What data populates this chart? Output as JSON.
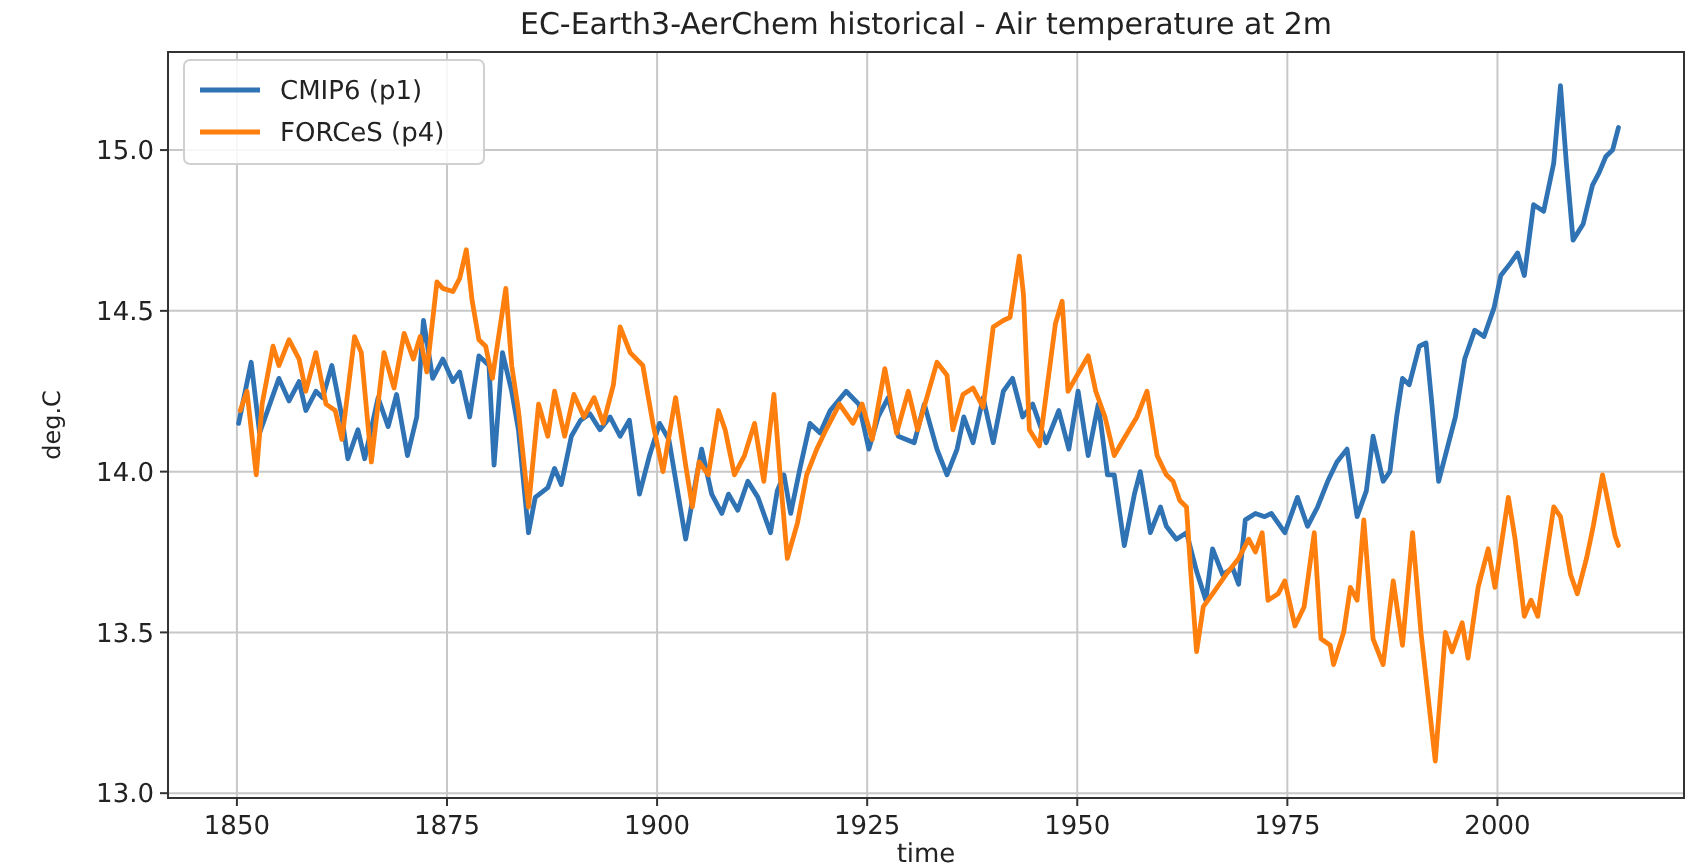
{
  "chart_data": {
    "type": "line",
    "title": "EC-Earth3-AerChem historical - Air temperature at 2m",
    "xlabel": "time",
    "ylabel": "deg.C",
    "xlim": [
      1841.8,
      2022.2
    ],
    "xticks": [
      1850,
      1875,
      1900,
      1925,
      1950,
      1975,
      2000
    ],
    "ylim": [
      12.985,
      15.305
    ],
    "yticks": [
      {
        "value": 13,
        "label": "13.0"
      },
      {
        "value": 13.5,
        "label": "13.5"
      },
      {
        "value": 14,
        "label": "14.0"
      },
      {
        "value": 14.5,
        "label": "14.5"
      },
      {
        "value": 15,
        "label": "15.0"
      }
    ],
    "grid": true,
    "legend": "top left",
    "series": [
      {
        "name": "CMIP6 (p1)",
        "color": "#2f73b5",
        "x": [
          1850.2,
          1851.7,
          1852.7,
          1855,
          1856.2,
          1857.4,
          1858.2,
          1859.4,
          1860.2,
          1861.3,
          1862.5,
          1863.2,
          1864.4,
          1865.2,
          1866.8,
          1868,
          1869,
          1870.3,
          1871.4,
          1872.2,
          1873.3,
          1874.5,
          1875.7,
          1876.5,
          1877.7,
          1878.8,
          1880,
          1880.6,
          1881.6,
          1882.7,
          1883.5,
          1884.7,
          1885.5,
          1887,
          1887.8,
          1888.6,
          1889.8,
          1890.9,
          1892,
          1893.2,
          1894.4,
          1895.6,
          1896.7,
          1897.9,
          1899.1,
          1900.3,
          1901.4,
          1903.4,
          1904.6,
          1905.3,
          1906.5,
          1907.7,
          1908.5,
          1909.6,
          1910.8,
          1912,
          1913.5,
          1914.3,
          1915.1,
          1915.9,
          1917,
          1918.2,
          1919.4,
          1920.6,
          1922.5,
          1924,
          1925.2,
          1926.3,
          1927.5,
          1928.7,
          1930.6,
          1931.8,
          1933.3,
          1934.5,
          1935.7,
          1936.5,
          1937.6,
          1938.8,
          1940,
          1941.2,
          1942.3,
          1943.5,
          1944.7,
          1946.3,
          1947.8,
          1949,
          1950.1,
          1951.3,
          1952.5,
          1953.6,
          1954.4,
          1955.6,
          1956.8,
          1957.5,
          1958.7,
          1959.9,
          1960.6,
          1961.8,
          1963,
          1964.2,
          1965.3,
          1966.1,
          1967.3,
          1968.5,
          1969.2,
          1970,
          1971.2,
          1972.3,
          1973.1,
          1974.7,
          1976.2,
          1977.4,
          1978.6,
          1979.8,
          1980.9,
          1982.1,
          1983.3,
          1984.4,
          1985.2,
          1986.4,
          1987.2,
          1988,
          1988.7,
          1989.5,
          1990.7,
          1991.5,
          1992.2,
          1993,
          1994.2,
          1995,
          1996.1,
          1997.3,
          1998.4,
          1999.6,
          2000.4,
          2001.6,
          2002.4,
          2003.2,
          2004.3,
          2005.5,
          2006.7,
          2007.5,
          2008.2,
          2009,
          2010.2,
          2011.3,
          2012.1,
          2012.9,
          2013.7,
          2014.4
        ],
        "values": [
          14.15,
          14.34,
          14.12,
          14.29,
          14.22,
          14.28,
          14.19,
          14.25,
          14.23,
          14.33,
          14.17,
          14.04,
          14.13,
          14.04,
          14.23,
          14.14,
          14.24,
          14.05,
          14.17,
          14.47,
          14.29,
          14.35,
          14.28,
          14.31,
          14.17,
          14.36,
          14.33,
          14.02,
          14.37,
          14.25,
          14.13,
          13.81,
          13.92,
          13.95,
          14.01,
          13.96,
          14.11,
          14.16,
          14.18,
          14.13,
          14.17,
          14.11,
          14.16,
          13.93,
          14.05,
          14.15,
          14.1,
          13.79,
          13.97,
          14.07,
          13.93,
          13.87,
          13.93,
          13.88,
          13.97,
          13.92,
          13.81,
          13.94,
          13.99,
          13.87,
          14.01,
          14.15,
          14.12,
          14.19,
          14.25,
          14.21,
          14.07,
          14.17,
          14.23,
          14.11,
          14.09,
          14.21,
          14.07,
          13.99,
          14.07,
          14.17,
          14.09,
          14.23,
          14.09,
          14.25,
          14.29,
          14.17,
          14.21,
          14.09,
          14.19,
          14.07,
          14.25,
          14.05,
          14.21,
          13.99,
          13.99,
          13.77,
          13.93,
          14.0,
          13.81,
          13.89,
          13.83,
          13.79,
          13.81,
          13.69,
          13.6,
          13.76,
          13.68,
          13.7,
          13.65,
          13.85,
          13.87,
          13.86,
          13.87,
          13.81,
          13.92,
          13.83,
          13.89,
          13.97,
          14.03,
          14.07,
          13.86,
          13.94,
          14.11,
          13.97,
          14.0,
          14.17,
          14.29,
          14.27,
          14.39,
          14.4,
          14.21,
          13.97,
          14.09,
          14.17,
          14.35,
          14.44,
          14.42,
          14.51,
          14.61,
          14.65,
          14.68,
          14.61,
          14.83,
          14.81,
          14.96,
          15.2,
          14.96,
          14.72,
          14.77,
          14.89,
          14.93,
          14.98,
          15.0,
          15.07
        ]
      },
      {
        "name": "FORCeS (p4)",
        "color": "#ff7f0e",
        "x": [
          1850.4,
          1851.2,
          1852.3,
          1853,
          1854.3,
          1855,
          1856.2,
          1857.4,
          1858.2,
          1859.4,
          1860.6,
          1861.7,
          1862.5,
          1864,
          1864.8,
          1866,
          1867.5,
          1868.7,
          1869.9,
          1871,
          1871.8,
          1872.6,
          1873.8,
          1874.5,
          1875.7,
          1876.5,
          1877.3,
          1878,
          1878.8,
          1879.6,
          1880.4,
          1882,
          1882.7,
          1883.5,
          1884.7,
          1885.9,
          1887,
          1887.8,
          1889,
          1890.1,
          1891.3,
          1892.5,
          1893.6,
          1894.8,
          1895.6,
          1896.8,
          1898.3,
          1899.5,
          1900.7,
          1902.2,
          1903.4,
          1904.2,
          1905,
          1906.1,
          1907.3,
          1908.1,
          1909.2,
          1910.4,
          1911.6,
          1912.7,
          1913.9,
          1914.7,
          1915.5,
          1916.7,
          1917.8,
          1919,
          1920.1,
          1921.7,
          1923.3,
          1924.4,
          1925.6,
          1927.1,
          1928.5,
          1929.9,
          1931,
          1933.3,
          1934.5,
          1935.2,
          1936.4,
          1937.6,
          1938.8,
          1940,
          1941.2,
          1942,
          1943.1,
          1943.6,
          1944.3,
          1945.5,
          1947.4,
          1948.2,
          1948.9,
          1951.3,
          1952.2,
          1953.3,
          1954.4,
          1955.5,
          1957.1,
          1958.3,
          1959.5,
          1960.6,
          1961.4,
          1962.2,
          1963,
          1963.5,
          1964.2,
          1965,
          1966.1,
          1967.7,
          1969.2,
          1970.4,
          1971.2,
          1972,
          1972.7,
          1973.9,
          1974.7,
          1975.9,
          1977,
          1978.2,
          1979,
          1980.1,
          1980.5,
          1981.7,
          1982.5,
          1983.3,
          1984.1,
          1985.2,
          1986.4,
          1987.6,
          1988.7,
          1989.9,
          1990.9,
          1992.6,
          1993.8,
          1994.6,
          1995.8,
          1996.5,
          1997.7,
          1998.9,
          1999.7,
          2001.3,
          2002.1,
          2003.2,
          2004,
          2004.8,
          2005.5,
          2006.7,
          2007.5,
          2008.7,
          2009.5,
          2010.6,
          2011.4,
          2012.5,
          2014,
          2014.4
        ],
        "values": [
          14.19,
          14.25,
          13.99,
          14.21,
          14.39,
          14.33,
          14.41,
          14.35,
          14.25,
          14.37,
          14.21,
          14.19,
          14.1,
          14.42,
          14.37,
          14.03,
          14.37,
          14.26,
          14.43,
          14.35,
          14.42,
          14.31,
          14.59,
          14.57,
          14.56,
          14.6,
          14.69,
          14.53,
          14.41,
          14.39,
          14.29,
          14.57,
          14.33,
          14.19,
          13.89,
          14.21,
          14.11,
          14.25,
          14.11,
          14.24,
          14.17,
          14.23,
          14.15,
          14.27,
          14.45,
          14.37,
          14.33,
          14.15,
          14.0,
          14.23,
          14.02,
          13.89,
          14.03,
          13.99,
          14.19,
          14.13,
          13.99,
          14.05,
          14.15,
          13.97,
          14.24,
          13.97,
          13.73,
          13.84,
          13.99,
          14.07,
          14.13,
          14.21,
          14.15,
          14.21,
          14.1,
          14.32,
          14.12,
          14.25,
          14.13,
          14.34,
          14.3,
          14.13,
          14.24,
          14.26,
          14.2,
          14.45,
          14.47,
          14.48,
          14.67,
          14.55,
          14.13,
          14.08,
          14.46,
          14.53,
          14.25,
          14.36,
          14.25,
          14.17,
          14.05,
          14.1,
          14.17,
          14.25,
          14.05,
          13.99,
          13.97,
          13.91,
          13.89,
          13.69,
          13.44,
          13.58,
          13.62,
          13.68,
          13.73,
          13.79,
          13.75,
          13.81,
          13.6,
          13.62,
          13.66,
          13.52,
          13.58,
          13.81,
          13.48,
          13.46,
          13.4,
          13.5,
          13.64,
          13.6,
          13.85,
          13.48,
          13.4,
          13.66,
          13.46,
          13.81,
          13.5,
          13.1,
          13.5,
          13.44,
          13.53,
          13.42,
          13.64,
          13.76,
          13.64,
          13.92,
          13.79,
          13.55,
          13.6,
          13.55,
          13.68,
          13.89,
          13.86,
          13.68,
          13.62,
          13.73,
          13.83,
          13.99,
          13.8,
          13.77
        ]
      }
    ]
  }
}
